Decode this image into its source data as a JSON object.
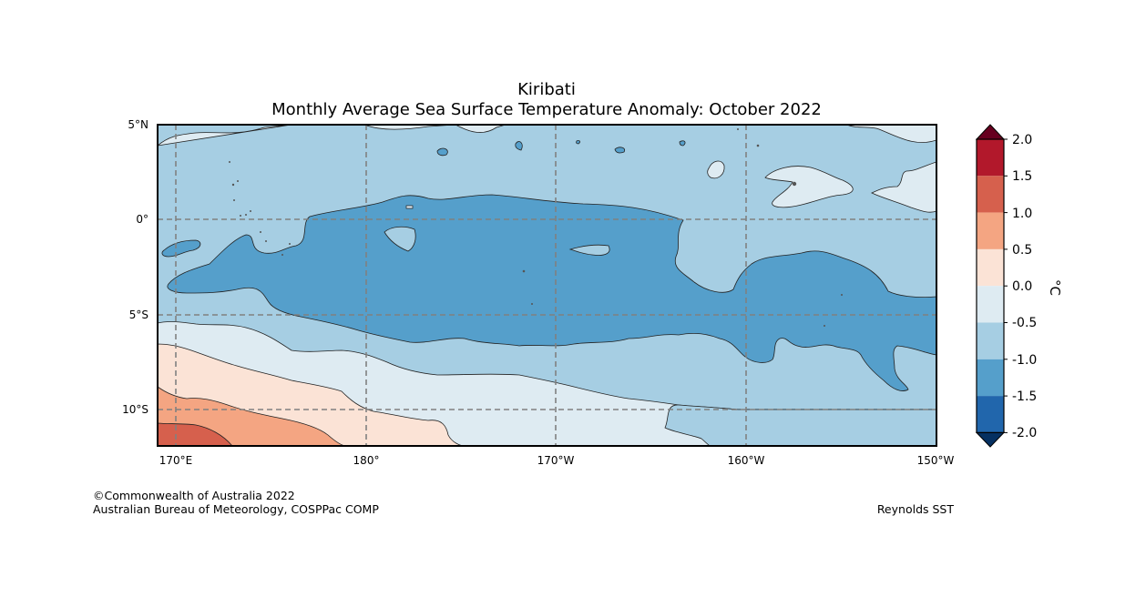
{
  "title": {
    "region": "Kiribati",
    "subtitle": "Monthly Average Sea Surface Temperature Anomaly: October 2022"
  },
  "map": {
    "lat_labels": [
      "5°N",
      "0°",
      "5°S",
      "10°S"
    ],
    "lon_labels": [
      "170°E",
      "180°",
      "170°W",
      "160°W",
      "150°W"
    ]
  },
  "colorbar": {
    "unit_label": "°C",
    "tick_labels": [
      "2.0",
      "1.5",
      "1.0",
      "0.5",
      "0.0",
      "-0.5",
      "-1.0",
      "-1.5",
      "-2.0"
    ],
    "colors": {
      "above_2.0": "#67001f",
      "1.5_2.0": "#b2182b",
      "1.0_1.5": "#d6604d",
      "0.5_1.0": "#f4a582",
      "0.0_0.5": "#fbe3d6",
      "-0.5_0.0": "#deebf2",
      "-1.0_-0.5": "#a6cee3",
      "-1.5_-1.0": "#559fcb",
      "-2.0_-1.5": "#2166ac",
      "below_-2.0": "#053061"
    }
  },
  "footer": {
    "copyright": "©Commonwealth of Australia 2022",
    "agency": "Australian Bureau of Meteorology, COSPPac COMP",
    "source": "Reynolds SST"
  }
}
